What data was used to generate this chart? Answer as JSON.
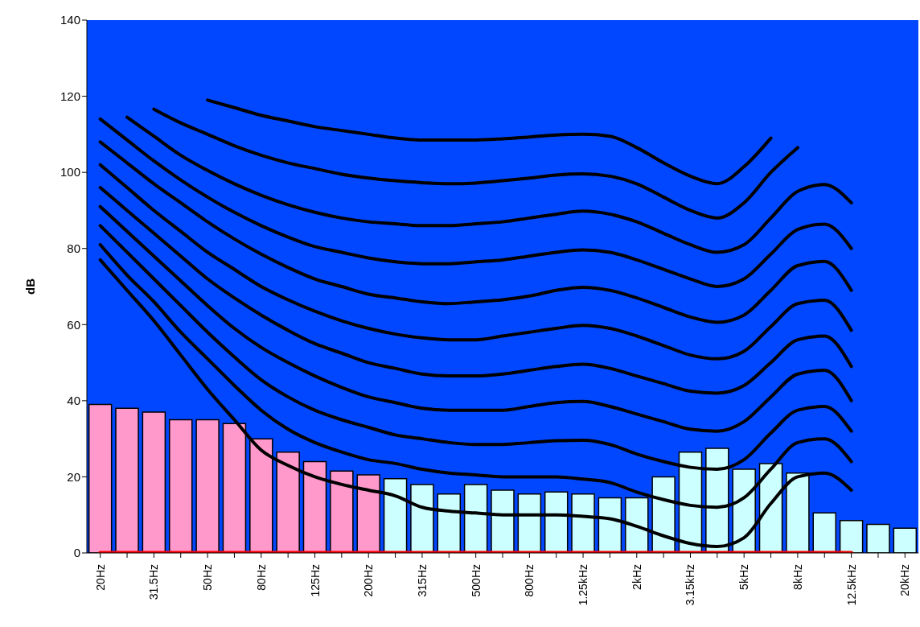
{
  "chart_data": {
    "type": "bar",
    "ylabel": "dB",
    "ylim": [
      0,
      140
    ],
    "yticks": [
      0,
      20,
      40,
      60,
      80,
      100,
      120,
      140
    ],
    "categories": [
      "20Hz",
      null,
      "31.5Hz",
      null,
      "50Hz",
      null,
      "80Hz",
      null,
      "125Hz",
      null,
      "200Hz",
      null,
      "315Hz",
      null,
      "500Hz",
      null,
      "800Hz",
      null,
      "1.25kHz",
      null,
      "2kHz",
      null,
      "3.15kHz",
      null,
      "5kHz",
      null,
      "8kHz",
      null,
      "12.5kHz",
      null,
      "20kHz"
    ],
    "series": [
      {
        "colors": [
          "#ff99cc",
          "#ff99cc",
          "#ff99cc",
          "#ff99cc",
          "#ff99cc",
          "#ff99cc",
          "#ff99cc",
          "#ff99cc",
          "#ff99cc",
          "#ff99cc",
          "#ff99cc",
          "#ccffff",
          "#ccffff",
          "#ccffff",
          "#ccffff",
          "#ccffff",
          "#ccffff",
          "#ccffff",
          "#ccffff",
          "#ccffff",
          "#ccffff",
          "#ccffff",
          "#ccffff",
          "#ccffff",
          "#ccffff",
          "#ccffff",
          "#ccffff",
          "#ccffff",
          "#ccffff",
          "#ccffff",
          "#ccffff"
        ],
        "values": [
          39,
          38,
          37,
          35,
          35,
          34,
          30,
          26.5,
          24,
          21.5,
          20.5,
          19.5,
          18,
          15.5,
          18,
          16.5,
          15.5,
          16,
          15.5,
          14.5,
          14.5,
          20,
          26.5,
          27.5,
          22,
          23.5,
          21,
          10.5,
          8.5,
          7.5,
          6.5
        ]
      },
      {
        "type": "line",
        "color": "#ff0000",
        "values": [
          0,
          0,
          0,
          0,
          0,
          0,
          0,
          0,
          0,
          0,
          0,
          0,
          0,
          0,
          0,
          0,
          0,
          0,
          0,
          0,
          0,
          0,
          0,
          0,
          0,
          0,
          0,
          0,
          0,
          null,
          null
        ]
      },
      {
        "type": "line",
        "color": "#000000",
        "values": [
          77,
          69,
          61,
          52,
          43,
          35,
          27,
          23,
          20,
          18,
          16.5,
          15,
          12,
          11,
          10.5,
          10,
          10,
          10,
          9.6,
          9,
          7,
          4.5,
          2.5,
          1.7,
          4,
          13,
          20,
          21,
          16.5,
          null,
          null
        ]
      },
      {
        "type": "line",
        "color": "#000000",
        "values": [
          81,
          73,
          66,
          58,
          51,
          44,
          37.5,
          32.5,
          29,
          26.5,
          24.5,
          23.5,
          22,
          21,
          20.5,
          20,
          20,
          20,
          19.4,
          18.5,
          16,
          14,
          12.5,
          12,
          14.5,
          22,
          29,
          30,
          24,
          null,
          null
        ]
      },
      {
        "type": "line",
        "color": "#000000",
        "values": [
          86,
          79,
          72,
          65,
          58,
          51.5,
          45.5,
          41,
          37.5,
          35,
          33,
          31,
          30,
          29,
          28.5,
          28.5,
          29,
          29.5,
          29.6,
          28.5,
          26,
          24,
          22.5,
          22,
          24.5,
          31.5,
          37.5,
          38.5,
          32,
          null,
          null
        ]
      },
      {
        "type": "line",
        "color": "#000000",
        "values": [
          91,
          84.5,
          78,
          71.5,
          65,
          59,
          54,
          50,
          46.5,
          43.5,
          41,
          39.5,
          38,
          37.5,
          37.5,
          37.5,
          38.5,
          39.5,
          39.8,
          38.5,
          36.5,
          34.5,
          32.5,
          32,
          34.5,
          41,
          47,
          48,
          40,
          null,
          null
        ]
      },
      {
        "type": "line",
        "color": "#000000",
        "values": [
          96,
          90,
          84,
          78,
          72,
          67,
          62.5,
          58.5,
          55,
          52.5,
          50,
          48.5,
          47,
          46.5,
          46.5,
          47,
          48,
          49,
          49.6,
          48.5,
          46.5,
          44.5,
          42.5,
          42,
          44,
          50,
          56,
          57,
          49,
          null,
          null
        ]
      },
      {
        "type": "line",
        "color": "#000000",
        "values": [
          102,
          96,
          90,
          84.5,
          79,
          74.5,
          70,
          66.5,
          63.5,
          61,
          59,
          57.5,
          56.5,
          56,
          56,
          57,
          58,
          59,
          59.8,
          59,
          57,
          54.5,
          52,
          51,
          53,
          59.5,
          65.5,
          66.4,
          58.5,
          null,
          null
        ]
      },
      {
        "type": "line",
        "color": "#000000",
        "values": [
          108,
          102.5,
          97,
          92,
          87,
          82.5,
          78.5,
          75,
          72,
          70,
          68,
          67,
          66,
          65.5,
          66,
          66.5,
          67.5,
          69,
          69.8,
          69,
          67,
          64.5,
          62,
          60.6,
          62.5,
          69,
          75.5,
          76.6,
          69,
          null,
          null
        ]
      },
      {
        "type": "line",
        "color": "#000000",
        "values": [
          114,
          108.5,
          103,
          98,
          93.5,
          89.5,
          86,
          83,
          80.5,
          79,
          77.5,
          76.5,
          76,
          76,
          76.5,
          77,
          78,
          79,
          79.6,
          79,
          77,
          74.5,
          72,
          70,
          72,
          78.5,
          85,
          86.4,
          80,
          null,
          null
        ]
      },
      {
        "type": "line",
        "color": "#000000",
        "values": [
          null,
          114.5,
          109.5,
          104.5,
          100.5,
          97,
          94,
          91.5,
          89.5,
          88,
          87,
          86.5,
          86,
          86,
          86.5,
          87,
          88,
          89,
          89.8,
          89,
          87,
          84,
          81,
          79,
          81,
          88,
          95,
          96.8,
          92,
          null,
          null
        ]
      },
      {
        "type": "line",
        "color": "#000000",
        "values": [
          null,
          null,
          116.6,
          113,
          110,
          107,
          104.5,
          102.5,
          101,
          99.5,
          98.5,
          97.8,
          97.3,
          97,
          97.2,
          97.8,
          98.5,
          99.3,
          99.6,
          99,
          97,
          93.5,
          90,
          88,
          92,
          100,
          106.5,
          null,
          null,
          null,
          null
        ]
      },
      {
        "type": "line",
        "color": "#000000",
        "values": [
          null,
          null,
          null,
          null,
          119,
          117,
          115,
          113.5,
          112,
          111,
          110,
          109,
          108.5,
          108.5,
          108.5,
          108.8,
          109.3,
          109.8,
          110,
          109.5,
          106.5,
          102.5,
          99,
          97,
          101.5,
          109,
          null,
          null,
          null,
          null,
          null
        ]
      }
    ]
  }
}
